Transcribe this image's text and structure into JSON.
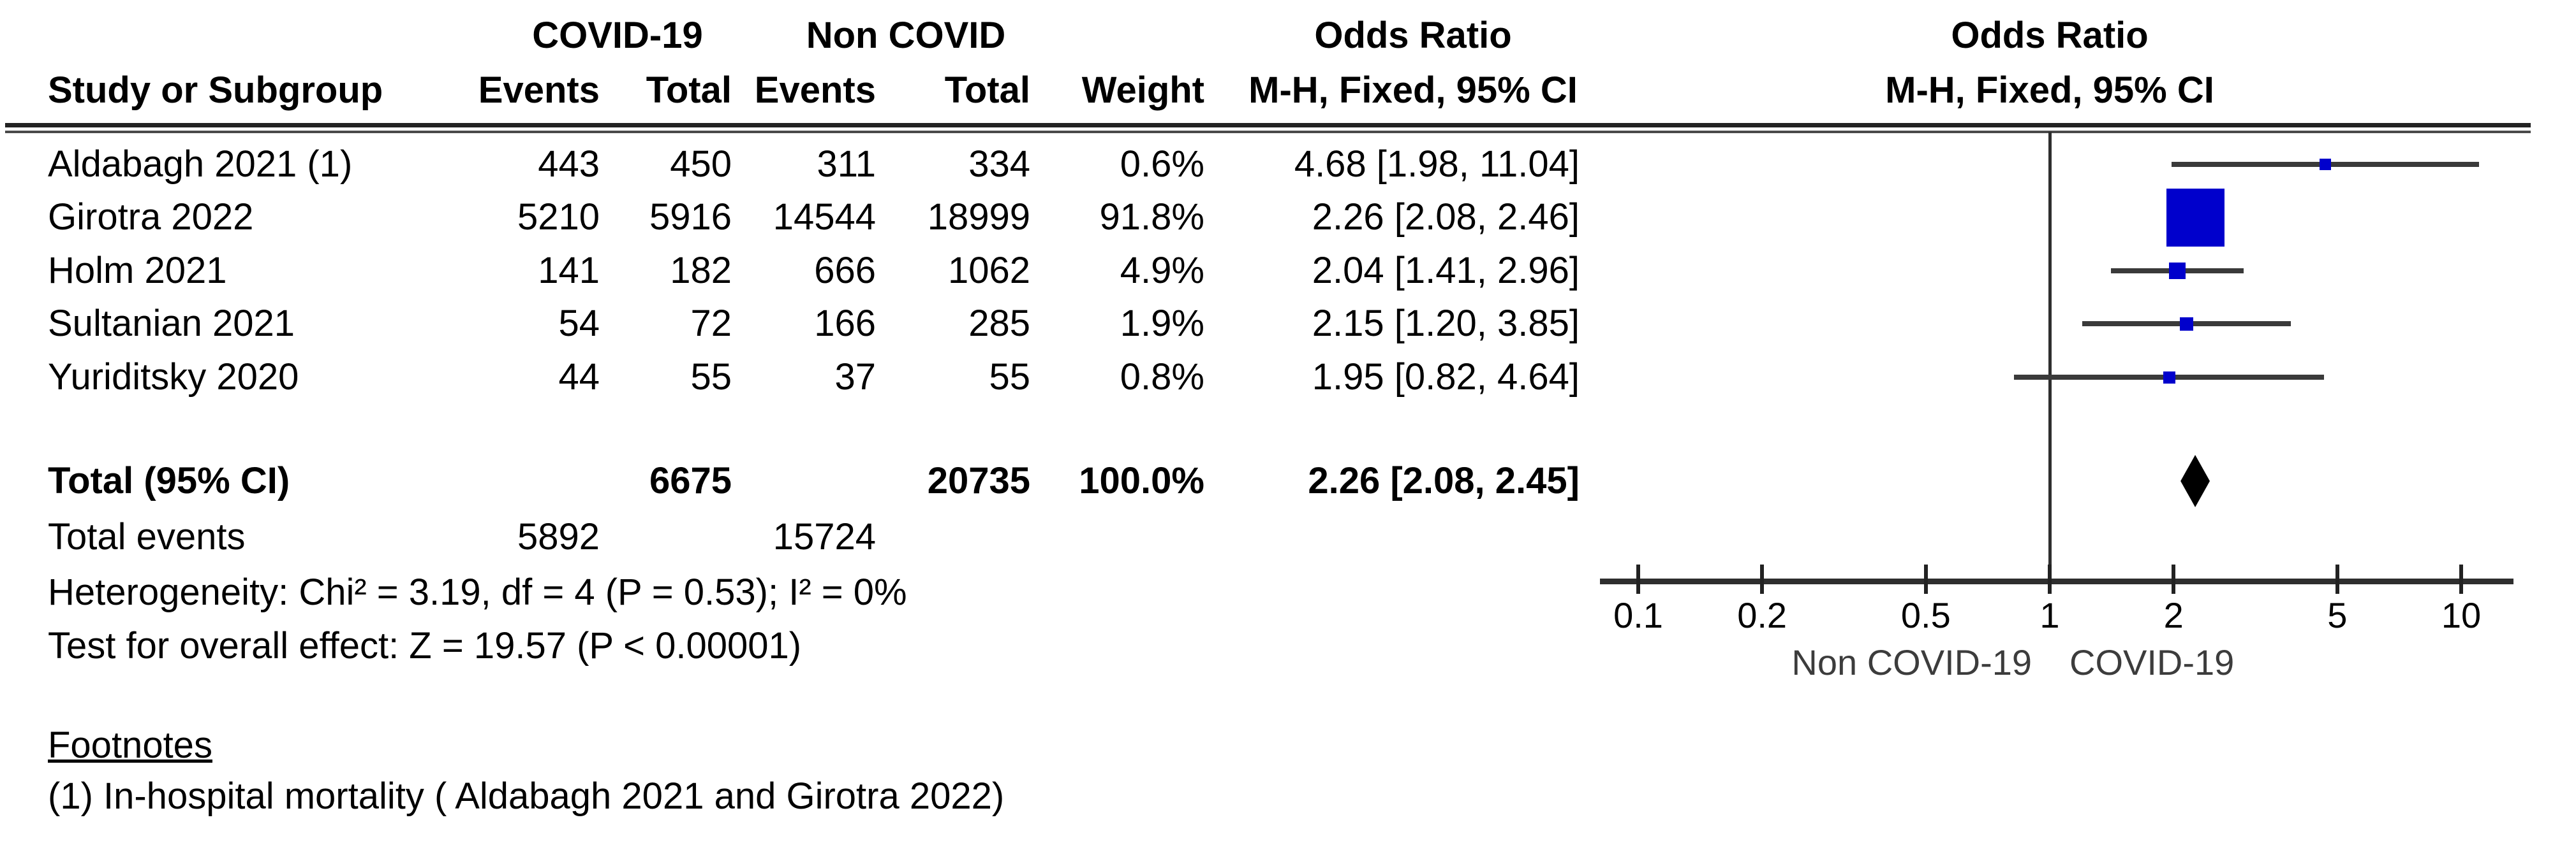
{
  "table": {
    "group1_header": "COVID-19",
    "group2_header": "Non COVID",
    "or_header": "Odds Ratio",
    "method_header": "M-H, Fixed, 95% CI",
    "col_study": "Study or Subgroup",
    "col_events": "Events",
    "col_total": "Total",
    "col_weight": "Weight",
    "rows": [
      {
        "study": "Aldabagh 2021 (1)",
        "events1": "443",
        "total1": "450",
        "events2": "311",
        "total2": "334",
        "weight": "0.6%",
        "or_ci": "4.68 [1.98, 11.04]"
      },
      {
        "study": "Girotra 2022",
        "events1": "5210",
        "total1": "5916",
        "events2": "14544",
        "total2": "18999",
        "weight": "91.8%",
        "or_ci": "2.26 [2.08, 2.46]"
      },
      {
        "study": "Holm 2021",
        "events1": "141",
        "total1": "182",
        "events2": "666",
        "total2": "1062",
        "weight": "4.9%",
        "or_ci": "2.04 [1.41, 2.96]"
      },
      {
        "study": "Sultanian 2021",
        "events1": "54",
        "total1": "72",
        "events2": "166",
        "total2": "285",
        "weight": "1.9%",
        "or_ci": "2.15 [1.20, 3.85]"
      },
      {
        "study": "Yuriditsky 2020",
        "events1": "44",
        "total1": "55",
        "events2": "37",
        "total2": "55",
        "weight": "0.8%",
        "or_ci": "1.95 [0.82, 4.64]"
      }
    ],
    "total_row": {
      "label": "Total (95% CI)",
      "total1": "6675",
      "total2": "20735",
      "weight": "100.0%",
      "or_ci": "2.26 [2.08, 2.45]"
    },
    "total_events_row": {
      "label": "Total events",
      "events1": "5892",
      "events2": "15724"
    },
    "heterogeneity": "Heterogeneity: Chi² = 3.19, df = 4 (P = 0.53); I² = 0%",
    "overall_effect": "Test for overall effect: Z = 19.57 (P < 0.00001)"
  },
  "footnotes": {
    "title": "Footnotes",
    "item1": "(1) In-hospital mortality ( Aldabagh 2021 and Girotra 2022)"
  },
  "chart_data": {
    "type": "forest",
    "x_scale": "log10",
    "axis_ticks": [
      0.1,
      0.2,
      0.5,
      1,
      2,
      5,
      10
    ],
    "axis_range": [
      0.1,
      10
    ],
    "null_line_value": 1,
    "axis_label_left": "Non COVID-19",
    "axis_label_right": "COVID-19",
    "effect_measure": "Odds Ratio",
    "model": "M-H, Fixed, 95% CI",
    "studies": [
      {
        "name": "Aldabagh 2021 (1)",
        "or": 4.68,
        "ci_low": 1.98,
        "ci_high": 11.04,
        "weight_pct": 0.6
      },
      {
        "name": "Girotra 2022",
        "or": 2.26,
        "ci_low": 2.08,
        "ci_high": 2.46,
        "weight_pct": 91.8
      },
      {
        "name": "Holm 2021",
        "or": 2.04,
        "ci_low": 1.41,
        "ci_high": 2.96,
        "weight_pct": 4.9
      },
      {
        "name": "Sultanian 2021",
        "or": 2.15,
        "ci_low": 1.2,
        "ci_high": 3.85,
        "weight_pct": 1.9
      },
      {
        "name": "Yuriditsky 2020",
        "or": 1.95,
        "ci_low": 0.82,
        "ci_high": 4.64,
        "weight_pct": 0.8
      }
    ],
    "total": {
      "or": 2.26,
      "ci_low": 2.08,
      "ci_high": 2.45
    },
    "marker_color": "#0000CC",
    "diamond_color": "#000000",
    "line_color": "#3a3a3a"
  }
}
